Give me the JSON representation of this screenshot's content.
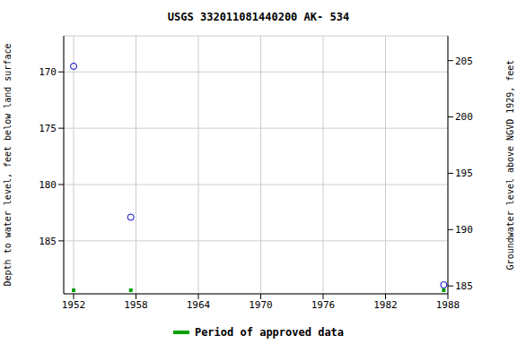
{
  "chart_data": {
    "type": "scatter",
    "title": "USGS 332011081440200 AK- 534",
    "y_label": "Depth to water level, feet below land surface",
    "y2_label": "Groundwater level above NGVD 1929, feet",
    "x": [
      1952.0,
      1957.5,
      1987.6
    ],
    "values": [
      169.5,
      182.9,
      188.9
    ],
    "color": "#0000cc",
    "marker": "circle-open",
    "xlim": [
      1951.05,
      1988
    ],
    "xticks": [
      1952,
      1958,
      1964,
      1970,
      1976,
      1982,
      1988
    ],
    "ylim": [
      189.7,
      166.8
    ],
    "yticks": [
      170,
      175,
      180,
      185
    ],
    "y2lim": [
      184.3,
      207.2
    ],
    "y2ticks": [
      185,
      190,
      195,
      200,
      205
    ],
    "grid": true,
    "series": [
      {
        "name": "Period of approved data",
        "color": "#00a000",
        "marker": "square",
        "x": [
          1952.0,
          1957.5,
          1987.6
        ]
      }
    ]
  }
}
